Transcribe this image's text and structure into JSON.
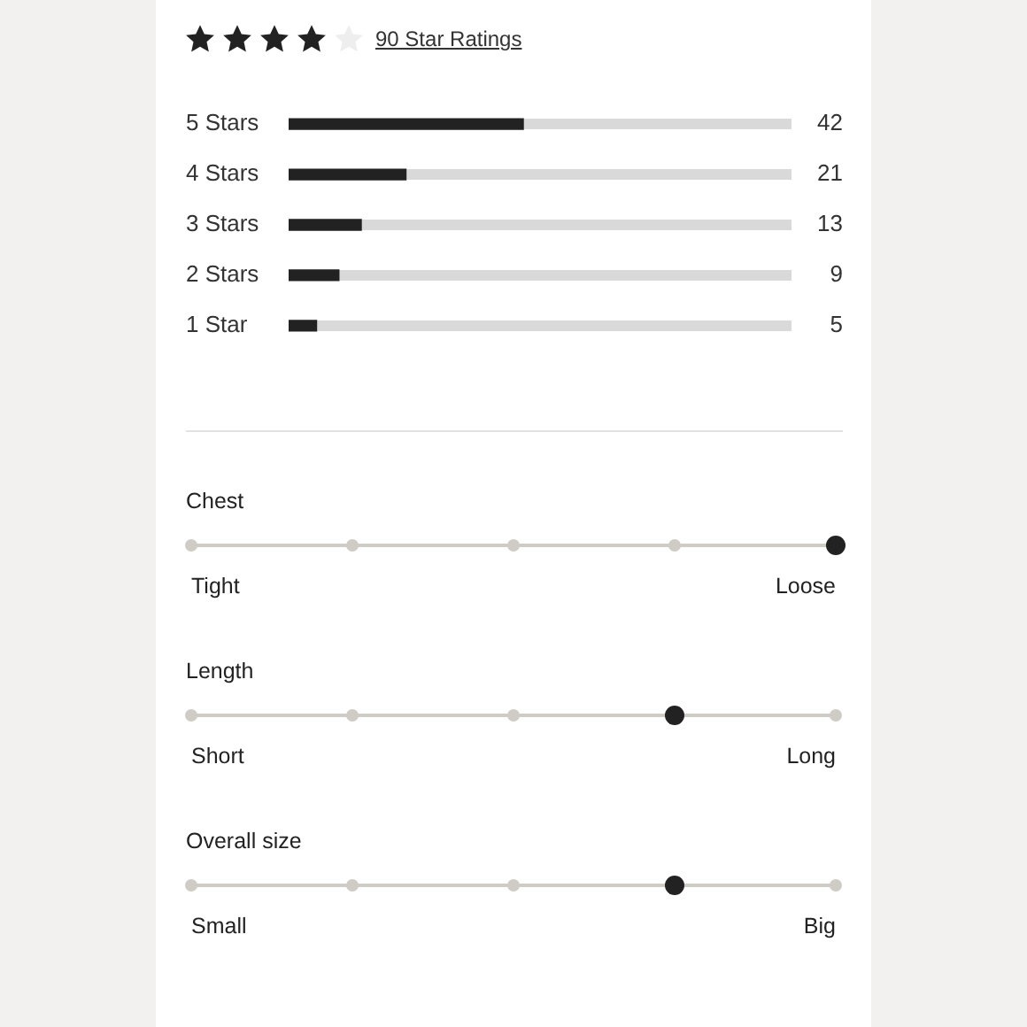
{
  "chart_data": [
    {
      "type": "bar",
      "title": "90 Star Ratings",
      "orientation": "horizontal",
      "categories": [
        "5 Stars",
        "4 Stars",
        "3 Stars",
        "2 Stars",
        "1 Star"
      ],
      "values": [
        42,
        21,
        13,
        9,
        5
      ],
      "color": "#222222",
      "xlim": [
        0,
        90
      ],
      "tick_labels": "y",
      "data_labels": true
    },
    {
      "type": "other",
      "title": "Chest",
      "categories": [
        "Tight",
        null,
        null,
        null,
        "Loose"
      ],
      "colors": [
        "#cfccc6",
        "#cfccc6",
        "#cfccc6",
        "#cfccc6",
        "#222222"
      ]
    },
    {
      "type": "other",
      "title": "Length",
      "categories": [
        "Short",
        null,
        null,
        null,
        "Long"
      ],
      "colors": [
        "#cfccc6",
        "#cfccc6",
        "#cfccc6",
        "#222222",
        "#cfccc6"
      ]
    },
    {
      "type": "other",
      "title": "Overall size",
      "categories": [
        "Small",
        null,
        null,
        null,
        "Big"
      ],
      "colors": [
        "#cfccc6",
        "#cfccc6",
        "#cfccc6",
        "#222222",
        "#cfccc6"
      ]
    }
  ]
}
